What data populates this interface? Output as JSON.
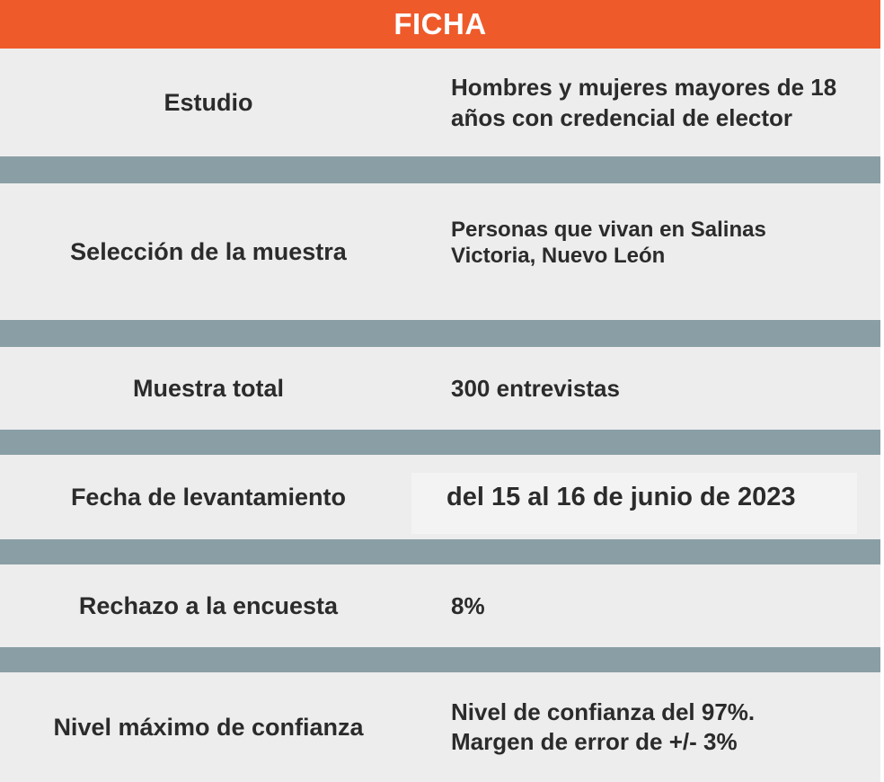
{
  "header": {
    "title": "FICHA"
  },
  "rows": [
    {
      "label": "Estudio",
      "value": "Hombres y mujeres mayores de 18 años con credencial de elector"
    },
    {
      "label": "Selección de la muestra",
      "value": "Personas que vivan en Salinas Victoria, Nuevo León"
    },
    {
      "label": "Muestra total",
      "value": "300 entrevistas"
    },
    {
      "label": "Fecha de levantamiento",
      "value": "del 15 al 16 de junio de 2023"
    },
    {
      "label": "Rechazo a la encuesta",
      "value": "8%"
    },
    {
      "label": "Nivel máximo de confianza",
      "value_line1": "Nivel de confianza del 97%.",
      "value_line2": "Margen de error de +/- 3%"
    }
  ],
  "colors": {
    "header": "#ef5a2a",
    "separator": "#8a9ea5",
    "row_background": "#ededed",
    "text": "#2b2b2b"
  }
}
